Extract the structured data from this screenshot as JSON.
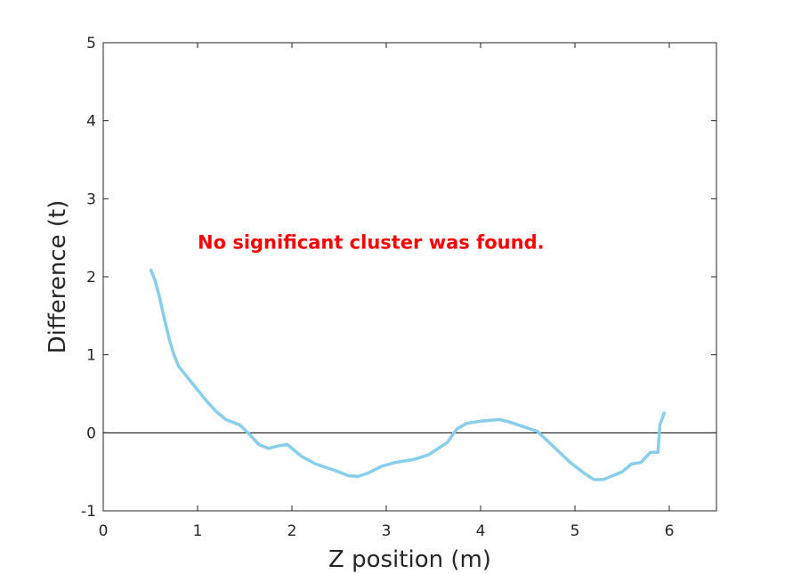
{
  "chart_data": {
    "type": "line",
    "xlabel": "Z position (m)",
    "ylabel": "Difference (t)",
    "xlim": [
      0,
      6.5
    ],
    "ylim": [
      -1,
      5
    ],
    "xticks": [
      "0",
      "1",
      "2",
      "3",
      "4",
      "5",
      "6"
    ],
    "yticks": [
      "-1",
      "0",
      "1",
      "2",
      "3",
      "4",
      "5"
    ],
    "grid": false,
    "annotation": {
      "text": "No significant cluster was found.",
      "color": "#ff0000",
      "x": 1,
      "y": 2.45
    },
    "reference_line": {
      "y": 0,
      "color": "#000000"
    },
    "series": [
      {
        "color": "#87ceeb",
        "x": [
          0.5,
          0.55,
          0.6,
          0.65,
          0.7,
          0.75,
          0.8,
          0.9,
          1.0,
          1.1,
          1.2,
          1.3,
          1.45,
          1.55,
          1.65,
          1.75,
          1.85,
          1.95,
          2.1,
          2.25,
          2.45,
          2.6,
          2.7,
          2.8,
          2.95,
          3.1,
          3.3,
          3.45,
          3.55,
          3.65,
          3.7,
          3.75,
          3.85,
          4.0,
          4.2,
          4.3,
          4.45,
          4.6,
          4.75,
          4.95,
          5.1,
          5.2,
          5.3,
          5.4,
          5.5,
          5.6,
          5.7,
          5.8,
          5.85,
          5.88,
          5.9,
          5.95
        ],
        "y": [
          2.1,
          1.95,
          1.72,
          1.45,
          1.2,
          1.0,
          0.85,
          0.7,
          0.55,
          0.4,
          0.27,
          0.17,
          0.1,
          -0.02,
          -0.15,
          -0.2,
          -0.17,
          -0.15,
          -0.3,
          -0.4,
          -0.48,
          -0.55,
          -0.56,
          -0.52,
          -0.43,
          -0.38,
          -0.34,
          -0.28,
          -0.2,
          -0.12,
          -0.03,
          0.05,
          0.12,
          0.15,
          0.17,
          0.14,
          0.08,
          0.02,
          -0.15,
          -0.38,
          -0.52,
          -0.6,
          -0.6,
          -0.55,
          -0.5,
          -0.4,
          -0.38,
          -0.25,
          -0.25,
          -0.25,
          0.1,
          0.27
        ]
      }
    ]
  }
}
